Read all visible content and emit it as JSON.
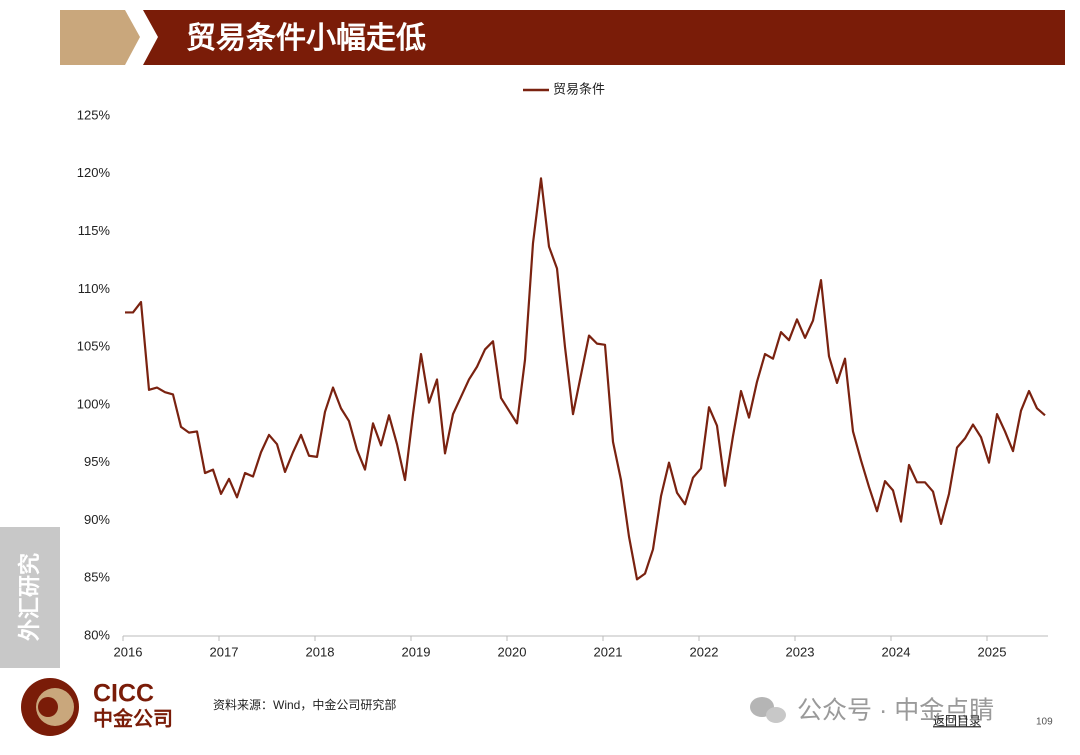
{
  "chart_data": {
    "type": "line",
    "title": "贸易条件小幅走低",
    "categories": [
      "2016",
      null,
      null,
      null,
      null,
      null,
      null,
      null,
      null,
      null,
      null,
      null,
      "2017",
      null,
      null,
      null,
      null,
      null,
      null,
      null,
      null,
      null,
      null,
      null,
      "2018",
      null,
      null,
      null,
      null,
      null,
      null,
      null,
      null,
      null,
      null,
      null,
      "2019",
      null,
      null,
      null,
      null,
      null,
      null,
      null,
      null,
      null,
      null,
      null,
      "2020",
      null,
      null,
      null,
      null,
      null,
      null,
      null,
      null,
      null,
      null,
      null,
      "2021",
      null,
      null,
      null,
      null,
      null,
      null,
      null,
      null,
      null,
      null,
      null,
      "2022",
      null,
      null,
      null,
      null,
      null,
      null,
      null,
      null,
      null,
      null,
      null,
      "2023",
      null,
      null,
      null,
      null,
      null,
      null,
      null,
      null,
      null,
      null,
      null,
      "2024",
      null,
      null,
      null,
      null,
      null,
      null,
      null,
      null,
      null,
      null,
      null,
      "2025",
      null,
      null,
      null,
      null,
      null,
      null,
      null
    ],
    "series": [
      {
        "name": "贸易条件",
        "color": "#7a2210",
        "values": [
          108,
          108,
          108.9,
          101.3,
          101.5,
          101.1,
          100.9,
          98.1,
          97.6,
          97.7,
          94.1,
          94.4,
          92.3,
          93.6,
          92.0,
          94.1,
          93.8,
          95.9,
          97.4,
          96.6,
          94.2,
          95.9,
          97.4,
          95.6,
          95.5,
          99.4,
          101.5,
          99.7,
          98.6,
          96.1,
          94.4,
          98.4,
          96.5,
          99.1,
          96.6,
          93.5,
          99.2,
          104.4,
          100.2,
          102.2,
          95.8,
          99.2,
          100.7,
          102.2,
          103.3,
          104.8,
          105.5,
          100.6,
          99.5,
          98.4,
          103.9,
          114,
          119.6,
          113.7,
          111.8,
          105,
          99.2,
          102.6,
          106,
          105.3,
          105.2,
          96.8,
          93.5,
          88.6,
          84.9,
          85.4,
          87.5,
          92.1,
          95,
          92.4,
          91.4,
          93.7,
          94.5,
          99.8,
          98.2,
          93,
          97.3,
          101.2,
          98.9,
          102,
          104.4,
          104,
          106.3,
          105.6,
          107.4,
          105.8,
          107.3,
          110.8,
          104.2,
          101.9,
          104,
          97.7,
          95.2,
          92.9,
          90.8,
          93.4,
          92.6,
          89.9,
          94.8,
          93.3,
          93.3,
          92.5,
          89.7,
          92.3,
          96.3,
          97.1,
          98.3,
          97.2,
          95,
          99.2,
          97.7,
          96,
          99.5,
          101.2,
          99.7,
          99.1
        ]
      }
    ],
    "ylim": [
      80,
      125
    ],
    "yticks": [
      {
        "value": 80,
        "label": "80%"
      },
      {
        "value": 85,
        "label": "85%"
      },
      {
        "value": 90,
        "label": "90%"
      },
      {
        "value": 95,
        "label": "95%"
      },
      {
        "value": 100,
        "label": "100%"
      },
      {
        "value": 105,
        "label": "105%"
      },
      {
        "value": 110,
        "label": "110%"
      },
      {
        "value": 115,
        "label": "115%"
      },
      {
        "value": 120,
        "label": "120%"
      },
      {
        "value": 125,
        "label": "125%"
      }
    ],
    "grid": false,
    "legend": "top"
  },
  "slide": {
    "side_label": "外汇研究",
    "logo": {
      "en": "CICC",
      "cn": "中金公司"
    },
    "source": "资料来源：Wind，中金公司研究部",
    "watermark": "公众号 · 中金点睛",
    "back_link": "返回目录",
    "page_number": "109"
  }
}
